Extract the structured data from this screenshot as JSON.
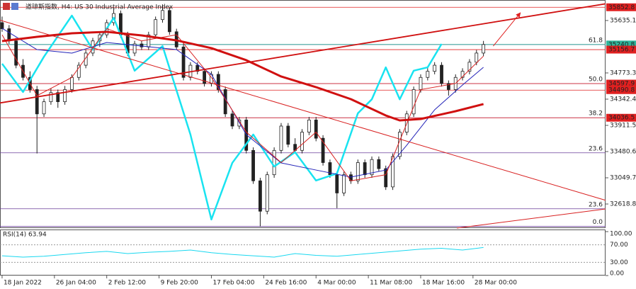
{
  "chart_data": {
    "type": "candlestick",
    "title": "道琼斯指数, H4: US 30 Industrial Average Index",
    "xlim": [
      -0.3,
      86.5
    ],
    "ylim": [
      32223,
      35914
    ],
    "yticks": [
      35635.1,
      34773.3,
      34342.4,
      33911.5,
      33480.6,
      33049.7,
      32618.8
    ],
    "xticks": [
      {
        "value": 0,
        "label": "18 Jan 2022"
      },
      {
        "value": 7.5,
        "label": "26 Jan 04:00"
      },
      {
        "value": 15,
        "label": "2 Feb 12:00"
      },
      {
        "value": 22.5,
        "label": "9 Feb 20:00"
      },
      {
        "value": 30,
        "label": "17 Feb 04:00"
      },
      {
        "value": 37.5,
        "label": "24 Feb 16:00"
      },
      {
        "value": 45,
        "label": "4 Mar 00:00"
      },
      {
        "value": 52.5,
        "label": "11 Mar 08:00"
      },
      {
        "value": 60,
        "label": "18 Mar 16:00"
      },
      {
        "value": 67.5,
        "label": "28 Mar 00:00"
      }
    ],
    "up_color": "#ffffff",
    "down_color": "#222222",
    "candle_line": "#222222",
    "candles": [
      [
        35600,
        35700,
        35450,
        35500
      ],
      [
        35500,
        35560,
        35250,
        35300
      ],
      [
        35300,
        35350,
        34850,
        34900
      ],
      [
        34900,
        35000,
        34650,
        34700
      ],
      [
        34700,
        34800,
        34450,
        34500
      ],
      [
        34500,
        34560,
        33450,
        34100
      ],
      [
        34100,
        34350,
        34050,
        34300
      ],
      [
        34300,
        34520,
        34250,
        34450
      ],
      [
        34450,
        34500,
        34200,
        34300
      ],
      [
        34300,
        34560,
        34250,
        34500
      ],
      [
        34500,
        34750,
        34450,
        34700
      ],
      [
        34700,
        34950,
        34650,
        34900
      ],
      [
        34900,
        35150,
        34850,
        35100
      ],
      [
        35100,
        35350,
        35050,
        35300
      ],
      [
        35300,
        35450,
        35200,
        35400
      ],
      [
        35400,
        35650,
        35350,
        35600
      ],
      [
        35600,
        35850,
        35550,
        35750
      ],
      [
        35750,
        35800,
        35350,
        35400
      ],
      [
        35400,
        35450,
        35050,
        35100
      ],
      [
        35100,
        35300,
        35050,
        35250
      ],
      [
        35250,
        35300,
        35150,
        35200
      ],
      [
        35200,
        35450,
        35150,
        35400
      ],
      [
        35400,
        35700,
        35350,
        35650
      ],
      [
        35650,
        35900,
        35600,
        35800
      ],
      [
        35800,
        35850,
        35400,
        35450
      ],
      [
        35450,
        35500,
        35150,
        35200
      ],
      [
        35200,
        35250,
        34650,
        34700
      ],
      [
        34700,
        34950,
        34650,
        34900
      ],
      [
        34900,
        34950,
        34750,
        34800
      ],
      [
        34800,
        34850,
        34550,
        34600
      ],
      [
        34600,
        34800,
        34550,
        34750
      ],
      [
        34750,
        34800,
        34450,
        34500
      ],
      [
        34500,
        34550,
        34050,
        34100
      ],
      [
        34100,
        34150,
        33850,
        33900
      ],
      [
        33900,
        34050,
        33850,
        34000
      ],
      [
        34000,
        34050,
        33450,
        33500
      ],
      [
        33500,
        33550,
        32950,
        33000
      ],
      [
        33000,
        33050,
        32250,
        32500
      ],
      [
        32500,
        33150,
        32450,
        33100
      ],
      [
        33100,
        33550,
        33050,
        33500
      ],
      [
        33500,
        33950,
        33450,
        33900
      ],
      [
        33900,
        33950,
        33550,
        33600
      ],
      [
        33600,
        33700,
        33450,
        33500
      ],
      [
        33500,
        33850,
        33450,
        33800
      ],
      [
        33800,
        34050,
        33750,
        34000
      ],
      [
        34000,
        34050,
        33650,
        33700
      ],
      [
        33700,
        33750,
        33250,
        33300
      ],
      [
        33300,
        33350,
        33050,
        33100
      ],
      [
        33100,
        33150,
        32550,
        32800
      ],
      [
        32800,
        33150,
        32750,
        33100
      ],
      [
        33100,
        33150,
        32950,
        33000
      ],
      [
        33000,
        33350,
        32950,
        33300
      ],
      [
        33300,
        33350,
        33050,
        33100
      ],
      [
        33100,
        33400,
        33050,
        33350
      ],
      [
        33350,
        33400,
        33150,
        33200
      ],
      [
        33200,
        33250,
        32850,
        32900
      ],
      [
        32900,
        33450,
        32850,
        33400
      ],
      [
        33400,
        33850,
        33350,
        33800
      ],
      [
        33800,
        34150,
        33750,
        34100
      ],
      [
        34100,
        34550,
        34050,
        34500
      ],
      [
        34500,
        34750,
        34450,
        34700
      ],
      [
        34700,
        34850,
        34650,
        34800
      ],
      [
        34800,
        34950,
        34750,
        34900
      ],
      [
        34900,
        34950,
        34550,
        34600
      ],
      [
        34600,
        34650,
        34400,
        34500
      ],
      [
        34500,
        34750,
        34450,
        34700
      ],
      [
        34700,
        34850,
        34650,
        34800
      ],
      [
        34800,
        35000,
        34750,
        34950
      ],
      [
        34950,
        35150,
        34900,
        35100
      ],
      [
        35100,
        35300,
        35050,
        35240
      ]
    ],
    "lines": [
      {
        "color": "#19e3f0",
        "width": 2.5,
        "x": [
          0,
          3,
          6,
          10,
          13,
          16,
          19,
          23,
          27,
          30,
          33,
          36,
          39,
          42,
          45,
          48,
          51,
          53,
          55,
          57,
          59,
          61,
          63
        ],
        "values": [
          34925,
          34460,
          35040,
          35715,
          35155,
          35680,
          34810,
          35215,
          33760,
          32365,
          33295,
          33760,
          33235,
          33470,
          33005,
          33120,
          34110,
          34340,
          34865,
          34340,
          34810,
          34865,
          35250
        ]
      },
      {
        "color": "#2323b8",
        "width": 1,
        "x": [
          0,
          5,
          10,
          15,
          20,
          25,
          30,
          35,
          40,
          45,
          50,
          55,
          58,
          62,
          66,
          69
        ],
        "values": [
          35507,
          35157,
          35099,
          35274,
          35216,
          35157,
          34750,
          33760,
          33294,
          33177,
          33061,
          33177,
          33585,
          34167,
          34575,
          34866
        ]
      },
      {
        "color": "#d82020",
        "width": 1,
        "x": [
          0,
          5,
          10,
          15,
          20,
          25,
          30,
          35,
          40,
          45,
          50,
          55,
          60,
          65,
          69
        ],
        "values": [
          35400,
          34400,
          34700,
          35500,
          35300,
          35400,
          34700,
          33800,
          33300,
          33800,
          33000,
          33100,
          34500,
          34600,
          35050
        ]
      },
      {
        "color": "#d01010",
        "width": 3,
        "x": [
          0,
          5,
          10,
          15,
          20,
          25,
          30,
          35,
          40,
          45,
          50,
          55,
          57,
          60,
          65,
          69
        ],
        "values": [
          35297,
          35367,
          35425,
          35449,
          35390,
          35309,
          35181,
          34983,
          34715,
          34540,
          34342,
          34074,
          33993,
          34016,
          34144,
          34261
        ]
      }
    ],
    "levels": [
      {
        "value": 35852.8,
        "color": "#e02020"
      },
      {
        "value": 35240.8,
        "color": "#2fb59a"
      },
      {
        "value": 35156.7,
        "color": "#e02020"
      },
      {
        "value": 34597.9,
        "color": "#e02020"
      },
      {
        "value": 34490.8,
        "color": "#e02020"
      },
      {
        "value": 34036.5,
        "color": "#e02020"
      }
    ],
    "fib_color": "#6a3d9a",
    "fib": [
      {
        "label": "61.8",
        "value": 35240.8
      },
      {
        "label": "50.0",
        "value": 34597.9
      },
      {
        "label": "38.2",
        "value": 34036.5
      },
      {
        "label": "23.6",
        "value": 33460
      },
      {
        "label": "23.6",
        "value": 32540
      },
      {
        "label": "0.0",
        "value": 32250
      }
    ],
    "trendlines": [
      {
        "color": "#d01010",
        "width": 1.8,
        "x": [
          -0.3,
          86.5
        ],
        "values": [
          34280,
          35910
        ]
      },
      {
        "color": "#d82020",
        "width": 1,
        "x": [
          -0.3,
          86.5
        ],
        "values": [
          35640,
          32680
        ]
      },
      {
        "color": "#d82020",
        "width": 1,
        "x": [
          65.2,
          86.5
        ],
        "values": [
          32223,
          32537
        ]
      },
      {
        "color": "#e02020",
        "width": 1,
        "x": [
          70.4,
          74.3
        ],
        "values": [
          35215,
          35763
        ],
        "arrow": true
      }
    ],
    "rsi": {
      "label": "RSI(14) 63.94",
      "ylim": [
        0,
        100
      ],
      "yticks": [
        {
          "value": 100,
          "label": "100.00"
        },
        {
          "value": 70,
          "label": "70.00"
        },
        {
          "value": 30,
          "label": "30.00"
        },
        {
          "value": 0,
          "label": "0.00"
        }
      ],
      "color": "#19d8f0",
      "x": [
        0,
        3,
        6,
        9,
        12,
        15,
        18,
        21,
        24,
        27,
        30,
        33,
        36,
        39,
        42,
        45,
        48,
        51,
        54,
        57,
        60,
        63,
        66,
        69
      ],
      "values": [
        45,
        42,
        44,
        48,
        52,
        55,
        50,
        53,
        55,
        58,
        52,
        48,
        45,
        42,
        50,
        46,
        44,
        48,
        52,
        56,
        60,
        62,
        58,
        63.94
      ]
    }
  }
}
